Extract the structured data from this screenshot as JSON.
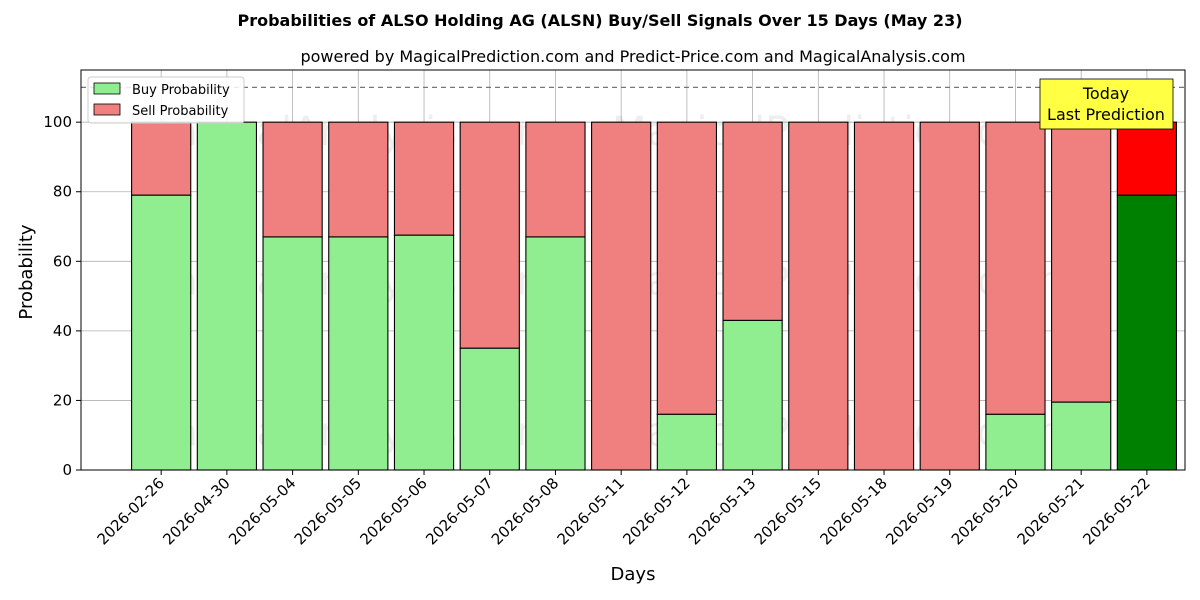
{
  "chart_data": {
    "type": "bar",
    "stacked": true,
    "title": "Probabilities of ALSO Holding AG (ALSN) Buy/Sell Signals Over 15 Days (May 23)",
    "subtitle": "powered by MagicalPrediction.com and Predict-Price.com and MagicalAnalysis.com",
    "xlabel": "Days",
    "ylabel": "Probability",
    "ylim": [
      0,
      115
    ],
    "yticks": [
      0,
      20,
      40,
      60,
      80,
      100
    ],
    "reference_line": 110,
    "grid": true,
    "legend_position": "top-left",
    "categories": [
      "2026-02-26",
      "2026-04-30",
      "2026-05-04",
      "2026-05-05",
      "2026-05-06",
      "2026-05-07",
      "2026-05-08",
      "2026-05-11",
      "2026-05-12",
      "2026-05-13",
      "2026-05-15",
      "2026-05-18",
      "2026-05-19",
      "2026-05-20",
      "2026-05-21",
      "2026-05-22"
    ],
    "series": [
      {
        "name": "Buy Probability",
        "color": "#90ee90",
        "highlight_color": "#008000",
        "values": [
          79,
          100,
          67,
          67,
          67.5,
          35,
          67,
          0,
          16,
          43,
          0,
          0,
          0,
          16,
          19.5,
          79
        ]
      },
      {
        "name": "Sell Probability",
        "color": "#f08080",
        "highlight_color": "#ff0000",
        "values": [
          21,
          0,
          33,
          33,
          32.5,
          65,
          33,
          100,
          84,
          57,
          100,
          100,
          100,
          84,
          80.5,
          21
        ]
      }
    ],
    "annotation": {
      "lines": [
        "Today",
        "Last Prediction"
      ],
      "color": "#ffff44"
    },
    "watermarks": [
      "MagicalAnalysis.com",
      "MagicalPrediction.com"
    ]
  }
}
